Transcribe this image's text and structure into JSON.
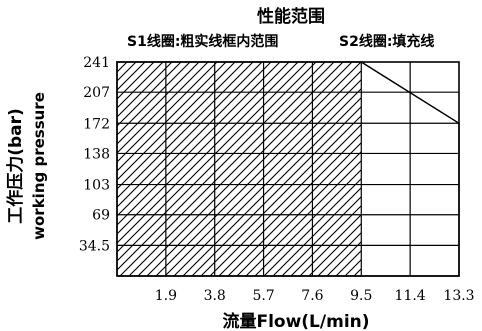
{
  "chart_data": {
    "type": "area",
    "title": "性能范围",
    "legend": {
      "s1": "S1线圈:粗实线框内范围",
      "s2": "S2线圈:填充线"
    },
    "xlabel": "流量Flow(L/min)",
    "ylabel_cn": "工作压力(bar)",
    "ylabel_en": "working pressure",
    "x_ticks": [
      "1.9",
      "3.8",
      "5.7",
      "7.6",
      "9.5",
      "11.4",
      "13.3"
    ],
    "x_tick_values": [
      1.9,
      3.8,
      5.7,
      7.6,
      9.5,
      11.4,
      13.3
    ],
    "y_ticks": [
      "34.5",
      "69",
      "103",
      "138",
      "172",
      "207",
      "241"
    ],
    "y_tick_values": [
      34.5,
      69,
      103,
      138,
      172,
      207,
      241
    ],
    "xlim": [
      0,
      13.3
    ],
    "ylim": [
      0,
      241
    ],
    "grid": true,
    "series": [
      {
        "name": "S1线圈:粗实线框内范围",
        "x": [
          0,
          13.3,
          13.3,
          9.5,
          0
        ],
        "y": [
          0,
          0,
          172,
          241,
          241
        ]
      },
      {
        "name": "S2线圈:填充线",
        "x": [
          0,
          9.5,
          9.5,
          0
        ],
        "y": [
          0,
          0,
          241,
          241
        ]
      }
    ]
  }
}
